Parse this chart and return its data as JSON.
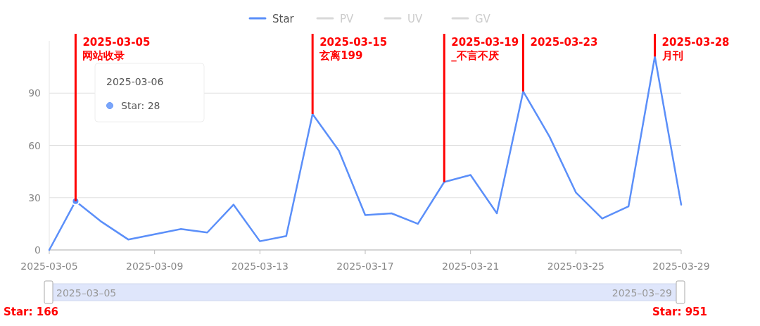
{
  "chart_data": {
    "type": "line",
    "x": [
      "2025-03-05",
      "2025-03-06",
      "2025-03-07",
      "2025-03-08",
      "2025-03-09",
      "2025-03-10",
      "2025-03-11",
      "2025-03-12",
      "2025-03-13",
      "2025-03-14",
      "2025-03-15",
      "2025-03-16",
      "2025-03-17",
      "2025-03-18",
      "2025-03-19",
      "2025-03-20",
      "2025-03-21",
      "2025-03-22",
      "2025-03-23",
      "2025-03-24",
      "2025-03-25",
      "2025-03-26",
      "2025-03-27",
      "2025-03-28",
      "2025-03-29"
    ],
    "series": [
      {
        "name": "Star",
        "color": "#5b8ff9",
        "values": [
          0,
          28,
          16,
          6,
          9,
          12,
          10,
          26,
          5,
          8,
          78,
          57,
          20,
          21,
          15,
          39,
          43,
          21,
          91,
          65,
          33,
          18,
          25,
          111,
          26
        ]
      },
      {
        "name": "PV",
        "color": "#d9d9d9",
        "values": [
          null,
          null,
          null,
          null,
          null,
          null,
          null,
          null,
          null,
          null,
          null,
          null,
          null,
          null,
          null,
          null,
          null,
          null,
          null,
          null,
          null,
          null,
          null,
          null,
          null
        ]
      },
      {
        "name": "UV",
        "color": "#d9d9d9",
        "values": [
          null,
          null,
          null,
          null,
          null,
          null,
          null,
          null,
          null,
          null,
          null,
          null,
          null,
          null,
          null,
          null,
          null,
          null,
          null,
          null,
          null,
          null,
          null,
          null,
          null
        ]
      },
      {
        "name": "GV",
        "color": "#d9d9d9",
        "values": [
          null,
          null,
          null,
          null,
          null,
          null,
          null,
          null,
          null,
          null,
          null,
          null,
          null,
          null,
          null,
          null,
          null,
          null,
          null,
          null,
          null,
          null,
          null,
          null,
          null
        ]
      }
    ],
    "xlim": [
      "2025-03-05",
      "2025-03-29"
    ],
    "xticks": [
      "2025-03-05",
      "2025-03-09",
      "2025-03-13",
      "2025-03-17",
      "2025-03-21",
      "2025-03-25",
      "2025-03-29"
    ],
    "ylim": [
      0,
      120
    ],
    "yticks": [
      0,
      30,
      60,
      90
    ],
    "grid": "y",
    "legend": "top",
    "marker": "none",
    "annotations": [
      {
        "text": "2025-03-05\n网站收录",
        "x": "2025-03-06",
        "y": 28
      },
      {
        "text": "2025-03-15\n玄离199",
        "x": "2025-03-15",
        "y": 78
      },
      {
        "text": "2025-03-19\n_不言不厌",
        "x": "2025-03-20",
        "y": 39
      },
      {
        "text": "2025-03-23",
        "x": "2025-03-23",
        "y": 91
      },
      {
        "text": "2025-03-28\n月刊",
        "x": "2025-03-28",
        "y": 111
      },
      "2025-03-06",
      "Star: 28",
      "2025–03–05",
      "2025–03–29",
      "Star: 166",
      "Star: 951"
    ]
  }
}
